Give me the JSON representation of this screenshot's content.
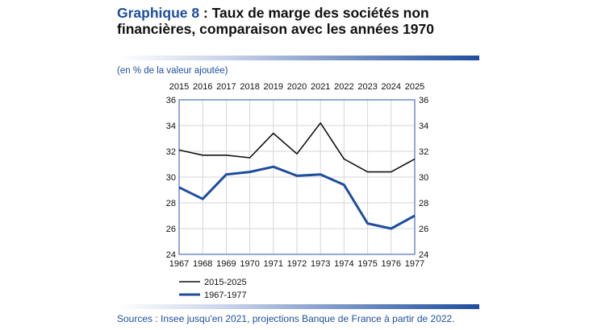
{
  "title": {
    "number": "Graphique 8",
    "text": " : Taux de marge des sociétés non financières, comparaison avec les années 1970"
  },
  "unit_note": "(en % de la valeur ajoutée)",
  "source": "Sources : Insee jusqu'en 2021, projections Banque de France à partir de 2022.",
  "chart_data": {
    "type": "line",
    "title": "Taux de marge des sociétés non financières, comparaison avec les années 1970",
    "ylabel": "en % de la valeur ajoutée",
    "ylim": [
      24,
      36
    ],
    "yticks": [
      24,
      26,
      28,
      30,
      32,
      34,
      36
    ],
    "x_bottom": [
      "1967",
      "1968",
      "1969",
      "1970",
      "1971",
      "1972",
      "1973",
      "1974",
      "1975",
      "1976",
      "1977"
    ],
    "x_top": [
      "2015",
      "2016",
      "2017",
      "2018",
      "2019",
      "2020",
      "2021",
      "2022",
      "2023",
      "2024",
      "2025"
    ],
    "grid": true,
    "legend_position": "bottom-left",
    "series": [
      {
        "name": "2015-2025",
        "color": "#111111",
        "axis": "top",
        "values": [
          32.1,
          31.7,
          31.7,
          31.5,
          33.4,
          31.8,
          34.2,
          31.4,
          30.4,
          30.4,
          31.4
        ]
      },
      {
        "name": "1967-1977",
        "color": "#1d4e9e",
        "axis": "bottom",
        "values": [
          29.2,
          28.3,
          30.2,
          30.4,
          30.8,
          30.1,
          30.2,
          29.4,
          26.4,
          26.0,
          27.0
        ]
      }
    ]
  }
}
